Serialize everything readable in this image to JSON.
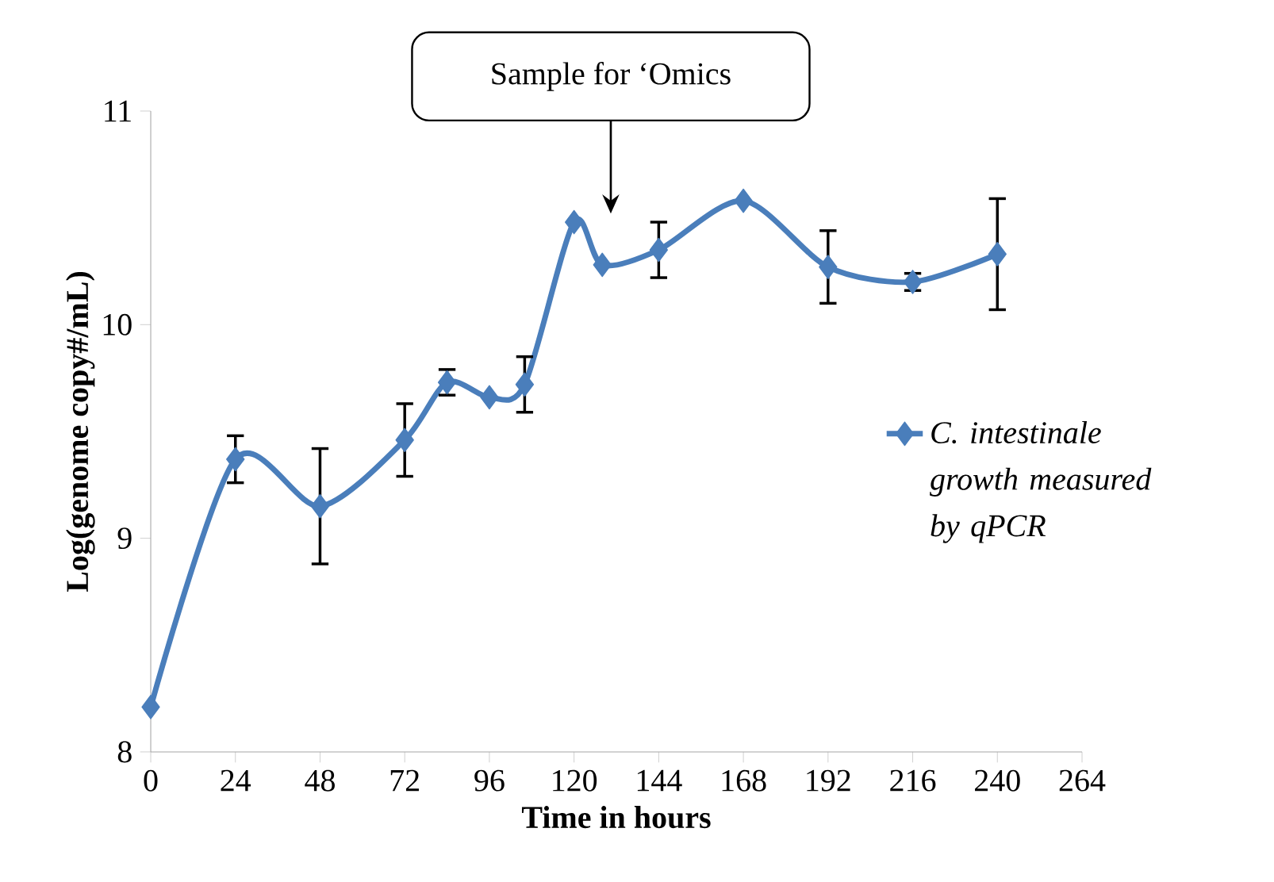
{
  "chart_data": {
    "type": "line",
    "xlabel": "Time in hours",
    "ylabel": "Log(genome copy#/mL)",
    "x": [
      0,
      24,
      48,
      72,
      84,
      96,
      106,
      120,
      128,
      144,
      168,
      192,
      216,
      240
    ],
    "series": [
      {
        "name": "C. intestinale growth measured by qPCR",
        "color": "#4a7ebb",
        "values": [
          8.21,
          9.37,
          9.15,
          9.46,
          9.73,
          9.66,
          9.72,
          10.48,
          10.28,
          10.35,
          10.58,
          10.27,
          10.2,
          10.33
        ],
        "errors": [
          null,
          0.11,
          0.27,
          0.17,
          0.06,
          null,
          0.13,
          null,
          null,
          0.13,
          null,
          0.17,
          0.04,
          0.26
        ]
      }
    ],
    "xlim": [
      0,
      264
    ],
    "xticks": [
      0,
      24,
      48,
      72,
      96,
      120,
      144,
      168,
      192,
      216,
      240,
      264
    ],
    "ylim": [
      8,
      11
    ],
    "yticks": [
      8,
      9,
      10,
      11
    ],
    "annotations": [
      "Sample for ‘Omics"
    ],
    "grid": false,
    "legend": "right",
    "marker": "diamond",
    "line_style": "solid"
  }
}
